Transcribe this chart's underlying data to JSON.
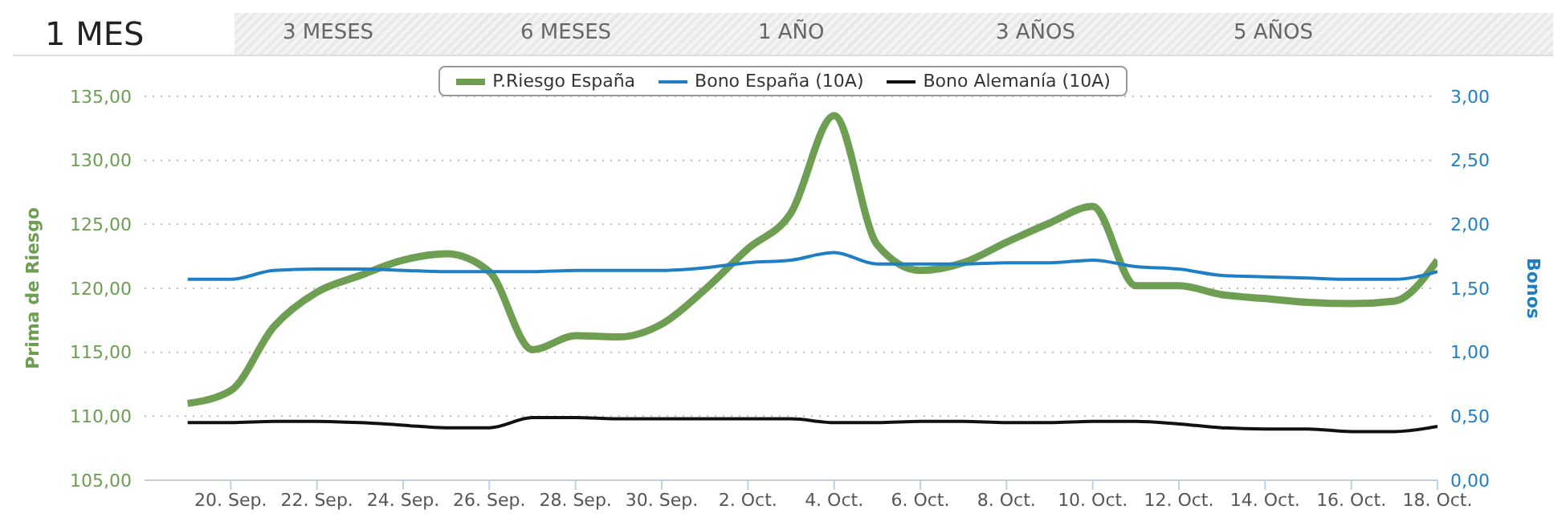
{
  "chart_data": {
    "type": "line",
    "annotations": [
      "1 MES",
      "3 MESES",
      "6 MESES",
      "1 AÑO",
      "3 AÑOS",
      "5 AÑOS"
    ],
    "ylabel": "Prima de Riesgo",
    "y2label": "Bonos",
    "x": [
      "--09-19",
      "--09-20",
      "--09-21",
      "--09-22",
      "--09-23",
      "--09-24",
      "--09-25",
      "--09-26",
      "--09-27",
      "--09-28",
      "--09-29",
      "--09-30",
      "--10-01",
      "--10-02",
      "--10-03",
      "--10-04",
      "--10-05",
      "--10-06",
      "--10-07",
      "--10-08",
      "--10-09",
      "--10-10",
      "--10-11",
      "--10-12",
      "--10-13",
      "--10-14",
      "--10-15",
      "--10-16",
      "--10-17",
      "--10-18"
    ],
    "xlim": [
      "--09-18",
      "--10-18"
    ],
    "xticks": [
      {
        "value": "--09-20",
        "label": "20. Sep."
      },
      {
        "value": "--09-22",
        "label": "22. Sep."
      },
      {
        "value": "--09-24",
        "label": "24. Sep."
      },
      {
        "value": "--09-26",
        "label": "26. Sep."
      },
      {
        "value": "--09-28",
        "label": "28. Sep."
      },
      {
        "value": "--09-30",
        "label": "30. Sep."
      },
      {
        "value": "--10-02",
        "label": "2. Oct."
      },
      {
        "value": "--10-04",
        "label": "4. Oct."
      },
      {
        "value": "--10-06",
        "label": "6. Oct."
      },
      {
        "value": "--10-08",
        "label": "8. Oct."
      },
      {
        "value": "--10-10",
        "label": "10. Oct."
      },
      {
        "value": "--10-12",
        "label": "12. Oct."
      },
      {
        "value": "--10-14",
        "label": "14. Oct."
      },
      {
        "value": "--10-16",
        "label": "16. Oct."
      },
      {
        "value": "--10-18",
        "label": "18. Oct."
      }
    ],
    "ylim": [
      105,
      135
    ],
    "yticks": [
      {
        "value": 105,
        "label": "105,00"
      },
      {
        "value": 110,
        "label": "110,00"
      },
      {
        "value": 115,
        "label": "115,00"
      },
      {
        "value": 120,
        "label": "120,00"
      },
      {
        "value": 125,
        "label": "125,00"
      },
      {
        "value": 130,
        "label": "130,00"
      },
      {
        "value": 135,
        "label": "135,00"
      }
    ],
    "y2lim": [
      0,
      3
    ],
    "y2ticks": [
      {
        "value": 0,
        "label": "0,00"
      },
      {
        "value": 0.5,
        "label": "0,50"
      },
      {
        "value": 1,
        "label": "1,00"
      },
      {
        "value": 1.5,
        "label": "1,50"
      },
      {
        "value": 2,
        "label": "2,00"
      },
      {
        "value": 2.5,
        "label": "2,50"
      },
      {
        "value": 3,
        "label": "3,00"
      }
    ],
    "grid": "y",
    "legend": "top",
    "marker": "none",
    "line_style": "solid",
    "series": [
      {
        "name": "P.Riesgo España",
        "color": "#6d9e52",
        "values": [
          111.0,
          112.0,
          117.0,
          119.7,
          121.0,
          122.2,
          122.7,
          121.3,
          115.2,
          116.3,
          116.2,
          117.2,
          119.9,
          123.1,
          125.9,
          133.5,
          123.4,
          121.4,
          122.0,
          123.6,
          125.1,
          126.4,
          120.2,
          120.2,
          119.5,
          119.2,
          118.9,
          118.8,
          119.0,
          122.2
        ]
      },
      {
        "name": "Bono España (10A)",
        "color": "#1f7fc4",
        "axis": "y2",
        "values": [
          1.57,
          1.57,
          1.64,
          1.65,
          1.65,
          1.64,
          1.63,
          1.63,
          1.63,
          1.64,
          1.64,
          1.64,
          1.66,
          1.7,
          1.72,
          1.78,
          1.69,
          1.69,
          1.69,
          1.7,
          1.7,
          1.72,
          1.67,
          1.65,
          1.6,
          1.59,
          1.58,
          1.57,
          1.57,
          1.63
        ]
      },
      {
        "name": "Bono Alemanía (10A)",
        "color": "#111111",
        "axis": "y2",
        "values": [
          0.45,
          0.45,
          0.46,
          0.46,
          0.45,
          0.43,
          0.41,
          0.41,
          0.49,
          0.49,
          0.48,
          0.48,
          0.48,
          0.48,
          0.48,
          0.45,
          0.45,
          0.46,
          0.46,
          0.45,
          0.45,
          0.46,
          0.46,
          0.44,
          0.41,
          0.4,
          0.4,
          0.38,
          0.38,
          0.42
        ]
      }
    ]
  }
}
